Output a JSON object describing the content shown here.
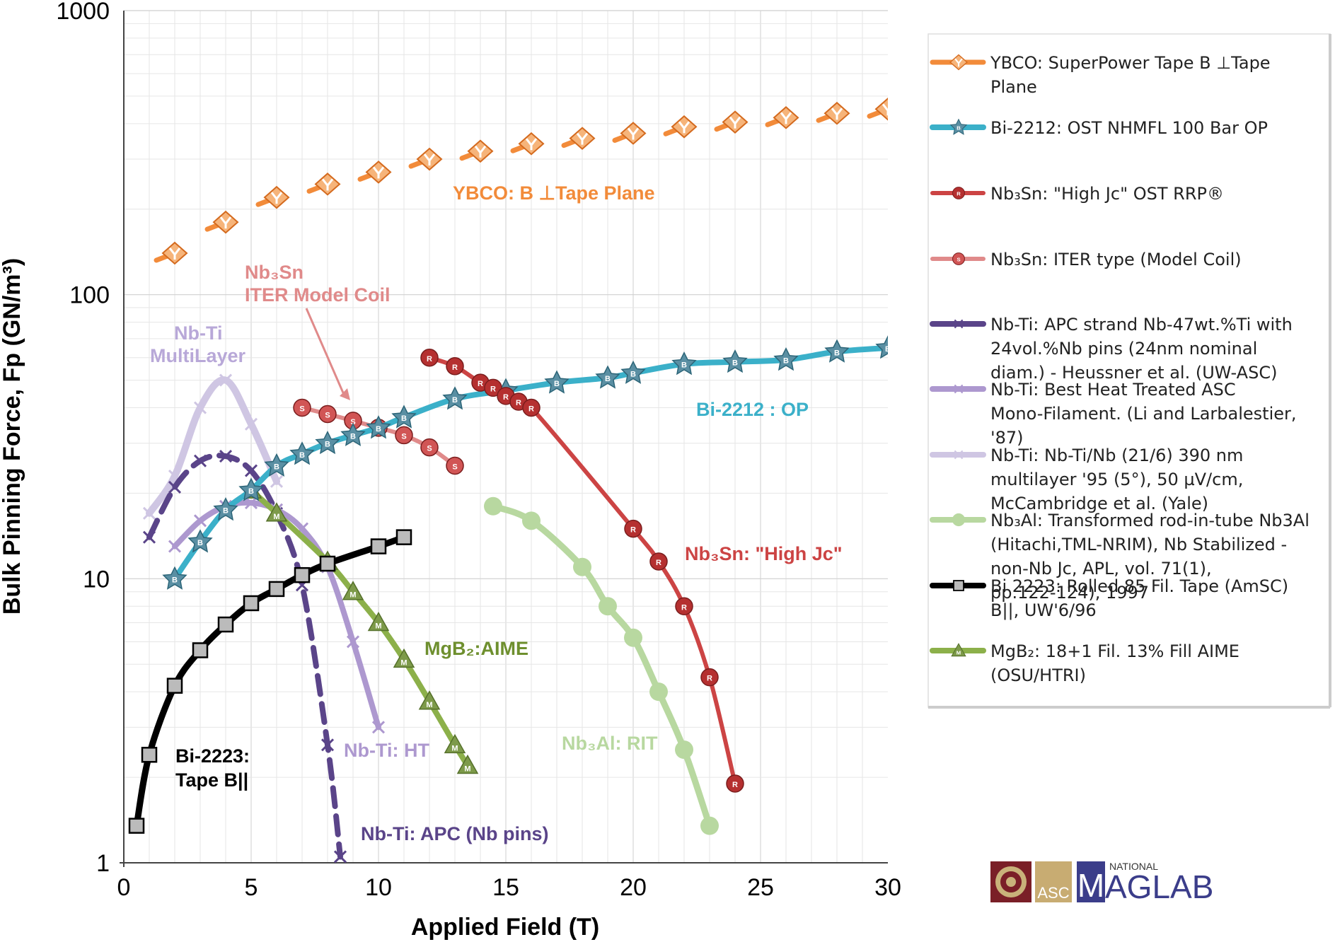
{
  "chart_data": {
    "type": "line",
    "xlabel": "Applied Field (T)",
    "ylabel": "Bulk Pinning Force, Fp (GN/m³)",
    "xlim": [
      0,
      30
    ],
    "ylim": [
      1,
      1000
    ],
    "yscale": "log",
    "grid": true,
    "legend_position": "right",
    "x_ticks": [
      "0",
      "5",
      "10",
      "15",
      "20",
      "25",
      "30"
    ],
    "y_ticks": [
      "1",
      "10",
      "100",
      "1000"
    ],
    "series": [
      {
        "name": "YBCO: SuperPower Tape B ⊥Tape Plane",
        "color": "#f28b3a",
        "marker": "Y",
        "dash": false,
        "width": 7,
        "x": [
          2,
          4,
          6,
          8,
          10,
          12,
          14,
          16,
          18,
          20,
          22,
          24,
          26,
          28,
          30
        ],
        "y": [
          140,
          180,
          220,
          245,
          270,
          300,
          320,
          340,
          355,
          370,
          390,
          405,
          420,
          435,
          450
        ]
      },
      {
        "name": "Bi-2212: OST NHMFL 100 Bar OP",
        "color": "#3bb0c9",
        "marker": "B",
        "dash": false,
        "width": 8,
        "x": [
          2,
          3,
          4,
          5,
          6,
          7,
          8,
          9,
          10,
          11,
          13,
          15,
          17,
          19,
          20,
          22,
          24,
          26,
          28,
          30
        ],
        "y": [
          10,
          13.5,
          17.5,
          20.5,
          25,
          27.5,
          30,
          32,
          34,
          37,
          43,
          46,
          49,
          51,
          53,
          57,
          58,
          59,
          63,
          65
        ]
      },
      {
        "name": "Nb₃Sn: \"High Jc\" OST RRP®",
        "color": "#cc4444",
        "marker": "R",
        "dash": false,
        "width": 6,
        "x": [
          12,
          13,
          14,
          14.5,
          15,
          15.5,
          16,
          20,
          21,
          22,
          23,
          24
        ],
        "y": [
          60,
          56,
          49,
          47,
          44,
          42,
          40,
          15,
          11.5,
          8,
          4.5,
          1.9
        ]
      },
      {
        "name": "Nb₃Sn: ITER type (Model Coil)",
        "color": "#e08a8a",
        "marker": "S",
        "dash": false,
        "width": 6,
        "x": [
          7,
          8,
          9,
          10,
          11,
          12,
          13
        ],
        "y": [
          40,
          38,
          36,
          34,
          32,
          29,
          25
        ]
      },
      {
        "name": "Nb-Ti: APC strand Nb-47wt.%Ti with 24vol.%Nb pins (24nm nominal diam.) - Heussner et al. (UW-ASC)",
        "color": "#5a4489",
        "marker": "x",
        "dash": true,
        "width": 8,
        "x": [
          1,
          2,
          3,
          4,
          5,
          6,
          7,
          8,
          8.5
        ],
        "y": [
          14,
          21,
          26,
          27,
          24,
          17,
          9.5,
          2.6,
          1.05
        ]
      },
      {
        "name": "Nb-Ti: Best Heat Treated ASC Mono-Filament. (Li and Larbalestier, '87)",
        "color": "#ad98cf",
        "marker": "x",
        "dash": false,
        "width": 8,
        "x": [
          2,
          3,
          4,
          5,
          6,
          7,
          8,
          9,
          10
        ],
        "y": [
          13,
          16,
          18,
          18.5,
          17.5,
          15,
          11,
          6,
          3
        ]
      },
      {
        "name": "Nb-Ti: Nb-Ti/Nb (21/6) 390 nm multilayer '95 (5°), 50 µV/cm, McCambridge et al. (Yale)",
        "color": "#cfc6e3",
        "marker": "x",
        "dash": false,
        "width": 10,
        "x": [
          1,
          2,
          3,
          4,
          5,
          6
        ],
        "y": [
          17,
          23,
          40,
          50,
          35,
          22
        ]
      },
      {
        "name": "Nb₃Al: Transformed rod-in-tube Nb3Al (Hitachi,TML-NRIM), Nb Stabilized - non-Nb Jc, APL, vol. 71(1), pp.122-124), 1997",
        "color": "#b8d8a0",
        "marker": "o",
        "dash": false,
        "width": 9,
        "x": [
          14.5,
          16,
          18,
          19,
          20,
          21,
          22,
          23
        ],
        "y": [
          18,
          16,
          11,
          8,
          6.2,
          4,
          2.5,
          1.35
        ]
      },
      {
        "name": "Bi 2223: Rolled 85 Fil. Tape (AmSC) B||, UW'6/96",
        "color": "#000000",
        "marker": "sq",
        "dash": false,
        "width": 9,
        "x": [
          0.5,
          1,
          2,
          3,
          4,
          5,
          6,
          7,
          8,
          10,
          11
        ],
        "y": [
          1.35,
          2.4,
          4.2,
          5.6,
          6.9,
          8.2,
          9.2,
          10.3,
          11.3,
          13,
          14
        ]
      },
      {
        "name": "MgB₂: 18+1 Fil. 13% Fill AIME (OSU/HTRI)",
        "color": "#8cb04a",
        "marker": "M",
        "dash": false,
        "width": 8,
        "x": [
          5,
          6,
          8,
          9,
          10,
          11,
          12,
          13,
          13.5
        ],
        "y": [
          20.5,
          17,
          11.5,
          9,
          7,
          5.2,
          3.7,
          2.6,
          2.2
        ]
      }
    ],
    "annotations": [
      {
        "text": "YBCO: B ⊥Tape Plane",
        "color": "#f28b3a"
      },
      {
        "text": "Nb₃Sn",
        "color": "#e08a8a"
      },
      {
        "text": "ITER Model Coil",
        "color": "#e08a8a"
      },
      {
        "text": "Nb-Ti",
        "color": "#b8a8d8"
      },
      {
        "text": "MultiLayer",
        "color": "#b8a8d8"
      },
      {
        "text": "Bi-2212 : OP",
        "color": "#3bb0c9"
      },
      {
        "text": "Nb₃Sn: \"High Jc\"",
        "color": "#cc4444"
      },
      {
        "text": "MgB₂:AIME",
        "color": "#6e8f2e"
      },
      {
        "text": "Bi-2223:",
        "color": "#000000"
      },
      {
        "text": "Tape B||",
        "color": "#000000"
      },
      {
        "text": "Nb-Ti: HT",
        "color": "#ad98cf"
      },
      {
        "text": "Nb₃Al: RIT",
        "color": "#b8d8a0"
      },
      {
        "text": "Nb-Ti: APC (Nb pins)",
        "color": "#5a4489"
      }
    ]
  },
  "logos": {
    "asc": "ASC",
    "national": "NATIONAL",
    "maglab_m": "M",
    "maglab_rest": "AGLAB"
  }
}
